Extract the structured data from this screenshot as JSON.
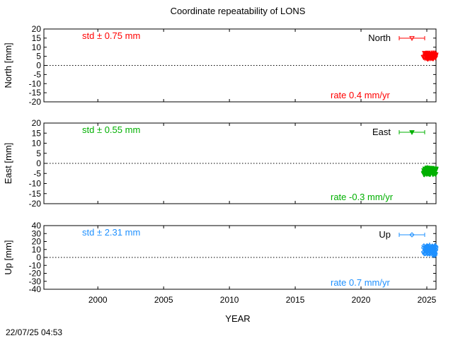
{
  "chart_data": {
    "type": "scatter",
    "title": "Coordinate repeatability of LONS",
    "xlabel": "YEAR",
    "xlim": [
      1995.9,
      2025.7
    ],
    "x_ticks": [
      2000,
      2005,
      2010,
      2015,
      2020,
      2025
    ],
    "timestamp": "22/07/25 04:53",
    "panels": [
      {
        "name": "north",
        "ylabel": "North [mm]",
        "ylim": [
          -20,
          20
        ],
        "y_ticks": [
          -20,
          -15,
          -10,
          -5,
          0,
          5,
          10,
          15,
          20
        ],
        "color": "#ff0000",
        "marker": "open-triangle-down",
        "legend": "North",
        "std_text": "std ± 0.75 mm",
        "rate_text": "rate  0.4 mm/yr",
        "series_range": {
          "x": [
            2024.75,
            2025.7
          ],
          "y": [
            3.5,
            7.0
          ]
        }
      },
      {
        "name": "east",
        "ylabel": "East [mm]",
        "ylim": [
          -20,
          20
        ],
        "y_ticks": [
          -20,
          -15,
          -10,
          -5,
          0,
          5,
          10,
          15,
          20
        ],
        "color": "#00b000",
        "marker": "filled-triangle-down",
        "legend": "East",
        "std_text": "std ± 0.55 mm",
        "rate_text": "rate -0.3 mm/yr",
        "series_range": {
          "x": [
            2024.75,
            2025.7
          ],
          "y": [
            -5.5,
            -2.0
          ]
        }
      },
      {
        "name": "up",
        "ylabel": "Up [mm]",
        "ylim": [
          -40,
          40
        ],
        "y_ticks": [
          -40,
          -30,
          -20,
          -10,
          0,
          10,
          20,
          30,
          40
        ],
        "color": "#1e90ff",
        "marker": "open-diamond",
        "legend": "Up",
        "std_text": "std ± 2.31 mm",
        "rate_text": "rate  0.7 mm/yr",
        "series_range": {
          "x": [
            2024.75,
            2025.7
          ],
          "y": [
            3.0,
            15.0
          ]
        }
      }
    ]
  }
}
